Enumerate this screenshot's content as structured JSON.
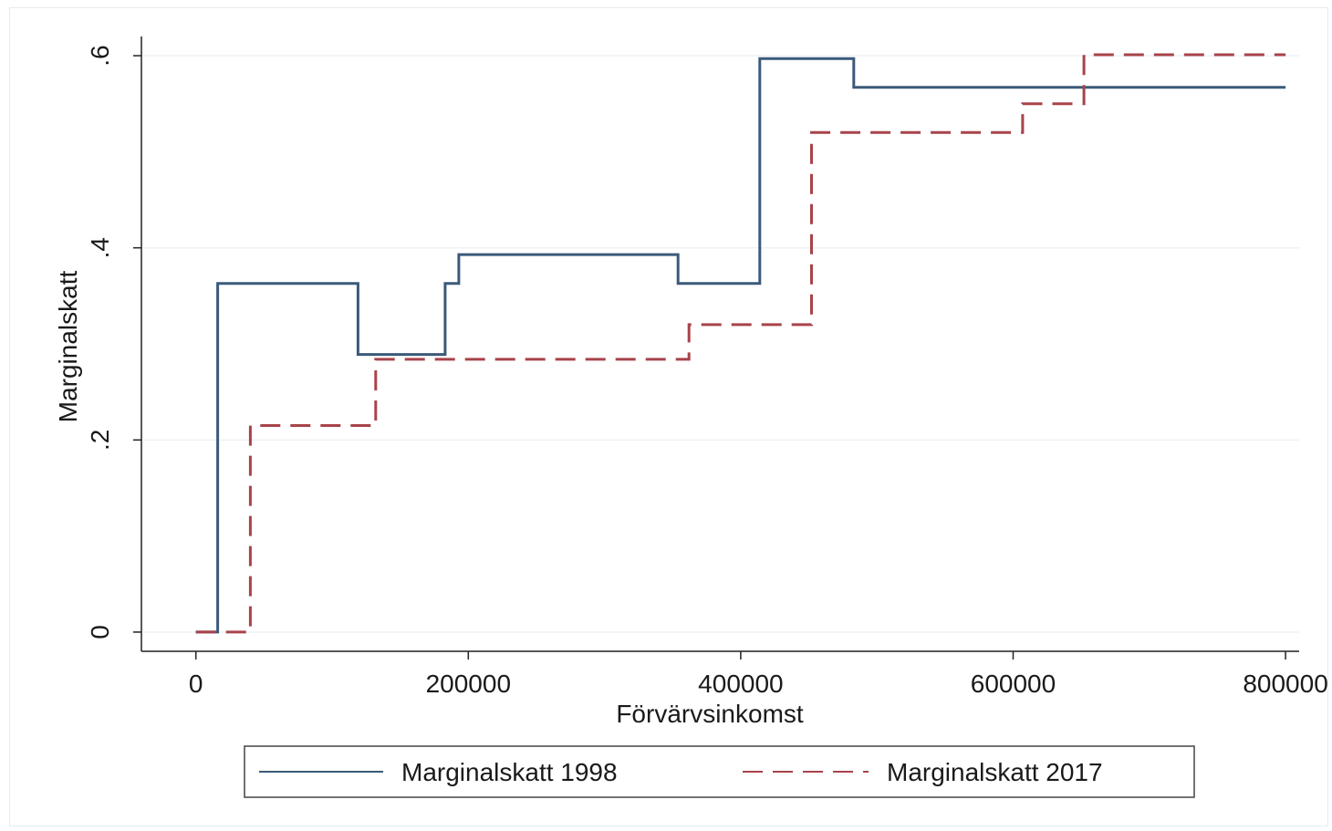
{
  "chart_data": {
    "type": "line",
    "xlabel": "Förvärvsinkomst",
    "ylabel": "Marginalskatt",
    "xlim": [
      -40000,
      810000
    ],
    "ylim": [
      -0.02,
      0.62
    ],
    "x_ticks": [
      0,
      200000,
      400000,
      600000,
      800000
    ],
    "x_tick_labels": [
      "0",
      "200000",
      "400000",
      "600000",
      "800000"
    ],
    "y_ticks": [
      0,
      0.2,
      0.4,
      0.6
    ],
    "y_tick_labels": [
      "0",
      ".2",
      ".4",
      ".6"
    ],
    "grid": true,
    "legend_position": "bottom",
    "series": [
      {
        "name": "Marginalskatt 1998",
        "color": "#3b5a7a",
        "style": "solid",
        "x": [
          0,
          16000,
          16000,
          119000,
          119000,
          183000,
          183000,
          193000,
          193000,
          354000,
          354000,
          414000,
          414000,
          483000,
          483000,
          800000
        ],
        "y": [
          0,
          0,
          0.363,
          0.363,
          0.289,
          0.289,
          0.363,
          0.363,
          0.393,
          0.393,
          0.363,
          0.363,
          0.597,
          0.597,
          0.567,
          0.567
        ]
      },
      {
        "name": "Marginalskatt 2017",
        "color": "#a8434a",
        "style": "dashed",
        "x": [
          0,
          40000,
          40000,
          132000,
          132000,
          362000,
          362000,
          452000,
          452000,
          607000,
          607000,
          652000,
          652000,
          800000
        ],
        "y": [
          0,
          0,
          0.215,
          0.215,
          0.284,
          0.284,
          0.32,
          0.32,
          0.52,
          0.52,
          0.55,
          0.55,
          0.601,
          0.601
        ]
      }
    ]
  }
}
